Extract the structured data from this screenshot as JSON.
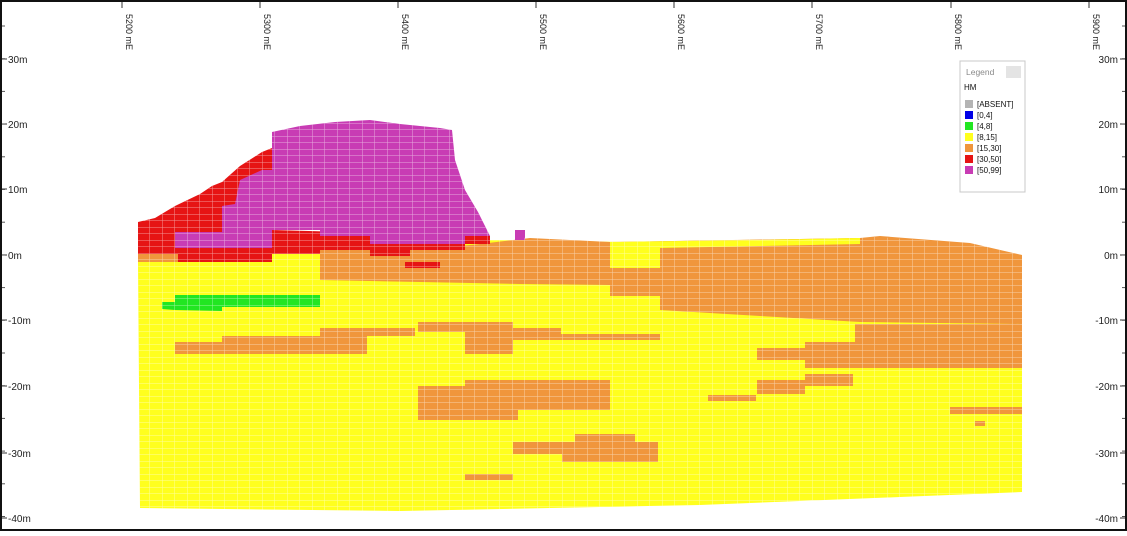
{
  "section": {
    "easting_labels": [
      "5200 mE",
      "5300 mE",
      "5400 mE",
      "5500 mE",
      "5600 mE",
      "5700 mE",
      "5800 mE",
      "5900 mE"
    ],
    "elevation_labels": [
      "30m",
      "20m",
      "10m",
      "0m",
      "-10m",
      "-20m",
      "-30m",
      "-40m"
    ]
  },
  "legend": {
    "title": "Legend",
    "variable": "HM",
    "items": [
      {
        "label": "[ABSENT]",
        "color": "#b4b4b4"
      },
      {
        "label": "[0,4]",
        "color": "#0000e6"
      },
      {
        "label": "[4,8]",
        "color": "#22e622"
      },
      {
        "label": "[8,15]",
        "color": "#ffff1e"
      },
      {
        "label": "[15,30]",
        "color": "#f0963c"
      },
      {
        "label": "[30,50]",
        "color": "#e61414"
      },
      {
        "label": "[50,99]",
        "color": "#c83cb4"
      }
    ]
  },
  "colors": {
    "yellow": "#ffff1e",
    "orange": "#f0963c",
    "red": "#e61414",
    "magenta": "#c83cb4",
    "green": "#22e622",
    "border": "#111111"
  }
}
